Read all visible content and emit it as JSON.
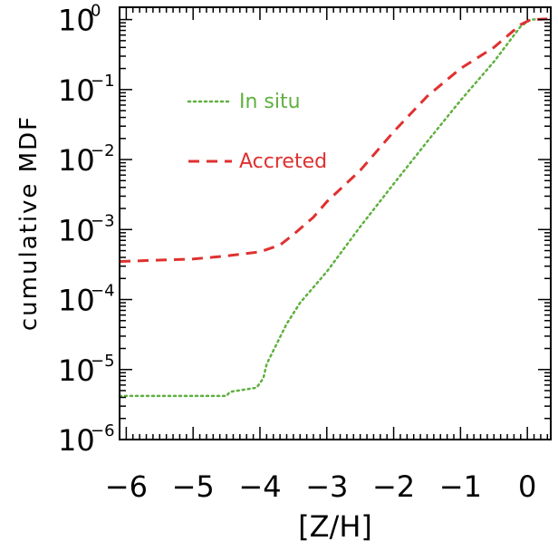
{
  "chart_data": {
    "type": "line",
    "xlabel": "[Z/H]",
    "ylabel": "cumulative MDF",
    "xlim": [
      -6.1,
      0.35
    ],
    "ylim": [
      1e-06,
      1.5
    ],
    "y_scale": "log",
    "x_ticks": [
      "-6",
      "-5",
      "-4",
      "-3",
      "-2",
      "-1",
      "0"
    ],
    "x_tick_values": [
      -6,
      -5,
      -4,
      -3,
      -2,
      -1,
      0
    ],
    "y_ticks": [
      {
        "base": "10",
        "exp": "0",
        "value": 1
      },
      {
        "base": "10",
        "exp": "-1",
        "value": 0.1
      },
      {
        "base": "10",
        "exp": "-2",
        "value": 0.01
      },
      {
        "base": "10",
        "exp": "-3",
        "value": 0.001
      },
      {
        "base": "10",
        "exp": "-4",
        "value": 0.0001
      },
      {
        "base": "10",
        "exp": "-5",
        "value": 1e-05
      },
      {
        "base": "10",
        "exp": "-6",
        "value": 1e-06
      }
    ],
    "legend_position": "top-left",
    "series": [
      {
        "name": "In situ",
        "color": "#5fb03f",
        "style": "dotted",
        "x": [
          -6.1,
          -4.5,
          -4.45,
          -4.05,
          -3.95,
          -3.9,
          -3.6,
          -3.4,
          -3.0,
          -2.5,
          -2.0,
          -1.5,
          -1.0,
          -0.5,
          -0.1,
          0.05,
          0.3
        ],
        "y": [
          4.2e-06,
          4.2e-06,
          4.8e-06,
          5.5e-06,
          7.5e-06,
          1.2e-05,
          4.5e-05,
          9e-05,
          0.00025,
          0.0011,
          0.0045,
          0.018,
          0.07,
          0.25,
          0.8,
          1.0,
          1.02
        ]
      },
      {
        "name": "Accreted",
        "color": "#e03030",
        "style": "dashed",
        "x": [
          -6.1,
          -5.0,
          -4.5,
          -4.0,
          -3.7,
          -3.5,
          -3.2,
          -3.0,
          -2.5,
          -2.0,
          -1.5,
          -1.0,
          -0.5,
          -0.1,
          0.05,
          0.3
        ],
        "y": [
          0.00035,
          0.00038,
          0.00042,
          0.00048,
          0.0006,
          0.00085,
          0.0015,
          0.0025,
          0.007,
          0.025,
          0.08,
          0.2,
          0.4,
          0.85,
          1.0,
          1.02
        ]
      }
    ]
  }
}
